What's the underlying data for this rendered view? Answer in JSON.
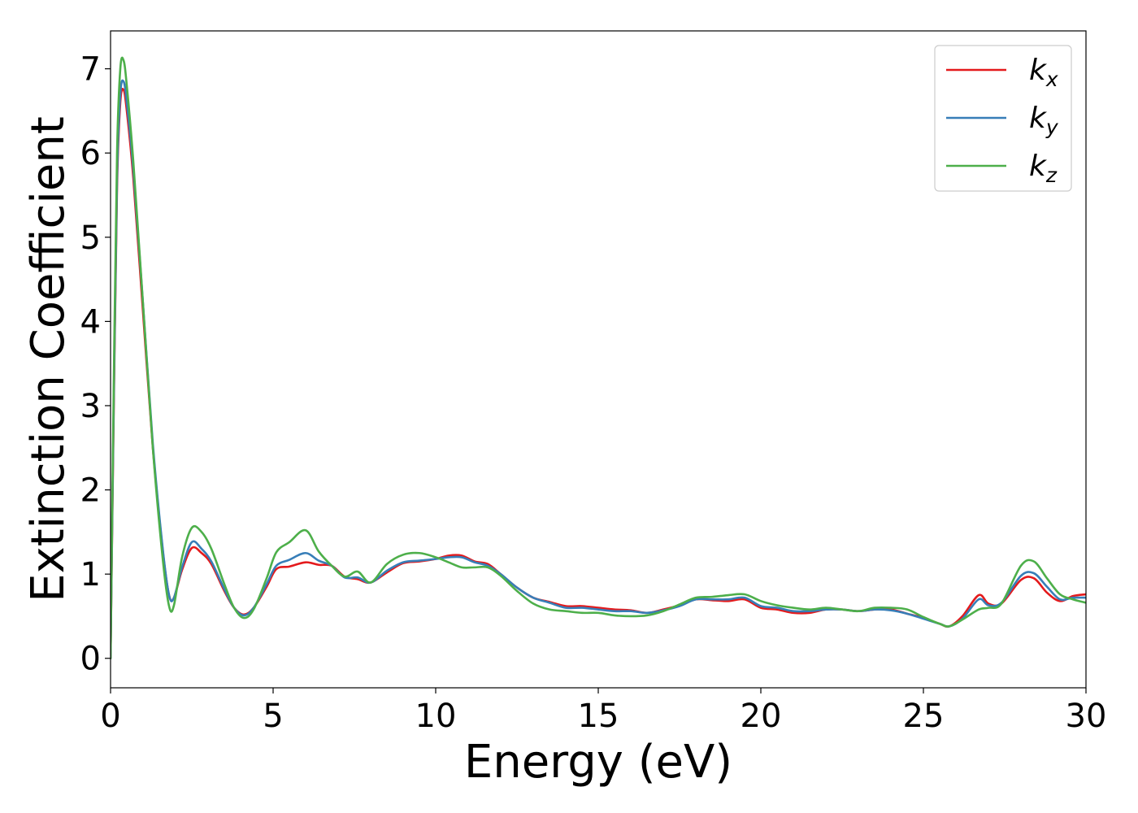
{
  "chart_data": {
    "type": "line",
    "title": "",
    "xlabel": "Energy (eV)",
    "ylabel": "Extinction Coefficient",
    "xlim": [
      0,
      30
    ],
    "ylim": [
      -0.35,
      7.45
    ],
    "xticks": [
      0,
      5,
      10,
      15,
      20,
      25,
      30
    ],
    "yticks": [
      0,
      1,
      2,
      3,
      4,
      5,
      6,
      7
    ],
    "grid": false,
    "legend_position": "top-right",
    "series": [
      {
        "name": "k",
        "subscript": "x",
        "color": "#e41a1c",
        "points": [
          [
            0,
            0
          ],
          [
            0.1,
            3.0
          ],
          [
            0.2,
            5.6
          ],
          [
            0.3,
            6.6
          ],
          [
            0.4,
            6.75
          ],
          [
            0.5,
            6.5
          ],
          [
            0.7,
            5.7
          ],
          [
            1.0,
            4.1
          ],
          [
            1.3,
            2.5
          ],
          [
            1.6,
            1.3
          ],
          [
            1.8,
            0.75
          ],
          [
            1.95,
            0.72
          ],
          [
            2.2,
            1.05
          ],
          [
            2.5,
            1.31
          ],
          [
            2.8,
            1.25
          ],
          [
            3.1,
            1.12
          ],
          [
            3.5,
            0.8
          ],
          [
            3.8,
            0.6
          ],
          [
            4.1,
            0.52
          ],
          [
            4.4,
            0.6
          ],
          [
            4.8,
            0.85
          ],
          [
            5.1,
            1.06
          ],
          [
            5.5,
            1.09
          ],
          [
            6.0,
            1.14
          ],
          [
            6.4,
            1.11
          ],
          [
            6.8,
            1.1
          ],
          [
            7.2,
            0.97
          ],
          [
            7.6,
            0.94
          ],
          [
            8.0,
            0.9
          ],
          [
            8.5,
            1.02
          ],
          [
            9.0,
            1.13
          ],
          [
            9.5,
            1.15
          ],
          [
            10.0,
            1.18
          ],
          [
            10.4,
            1.22
          ],
          [
            10.8,
            1.22
          ],
          [
            11.2,
            1.15
          ],
          [
            11.6,
            1.12
          ],
          [
            12.0,
            1.0
          ],
          [
            12.5,
            0.84
          ],
          [
            13.0,
            0.72
          ],
          [
            13.5,
            0.67
          ],
          [
            14.0,
            0.62
          ],
          [
            14.5,
            0.62
          ],
          [
            15.0,
            0.6
          ],
          [
            15.5,
            0.58
          ],
          [
            16.0,
            0.57
          ],
          [
            16.5,
            0.54
          ],
          [
            17.0,
            0.58
          ],
          [
            17.5,
            0.63
          ],
          [
            18.0,
            0.7
          ],
          [
            18.5,
            0.69
          ],
          [
            19.0,
            0.68
          ],
          [
            19.5,
            0.7
          ],
          [
            20.0,
            0.6
          ],
          [
            20.5,
            0.58
          ],
          [
            21.0,
            0.54
          ],
          [
            21.5,
            0.54
          ],
          [
            22.0,
            0.58
          ],
          [
            22.5,
            0.58
          ],
          [
            23.0,
            0.56
          ],
          [
            23.5,
            0.58
          ],
          [
            24.0,
            0.58
          ],
          [
            24.5,
            0.53
          ],
          [
            25.0,
            0.48
          ],
          [
            25.5,
            0.41
          ],
          [
            25.8,
            0.38
          ],
          [
            26.2,
            0.5
          ],
          [
            26.7,
            0.75
          ],
          [
            27.0,
            0.65
          ],
          [
            27.4,
            0.65
          ],
          [
            28.0,
            0.93
          ],
          [
            28.4,
            0.95
          ],
          [
            28.8,
            0.78
          ],
          [
            29.2,
            0.68
          ],
          [
            29.6,
            0.74
          ],
          [
            30.0,
            0.76
          ]
        ]
      },
      {
        "name": "k",
        "subscript": "y",
        "color": "#377eb8",
        "points": [
          [
            0,
            0
          ],
          [
            0.1,
            3.1
          ],
          [
            0.2,
            5.7
          ],
          [
            0.3,
            6.7
          ],
          [
            0.4,
            6.85
          ],
          [
            0.5,
            6.6
          ],
          [
            0.7,
            5.8
          ],
          [
            1.0,
            4.2
          ],
          [
            1.3,
            2.55
          ],
          [
            1.6,
            1.32
          ],
          [
            1.8,
            0.75
          ],
          [
            1.95,
            0.72
          ],
          [
            2.2,
            1.08
          ],
          [
            2.5,
            1.38
          ],
          [
            2.8,
            1.3
          ],
          [
            3.1,
            1.15
          ],
          [
            3.5,
            0.82
          ],
          [
            3.8,
            0.6
          ],
          [
            4.1,
            0.51
          ],
          [
            4.4,
            0.6
          ],
          [
            4.8,
            0.88
          ],
          [
            5.1,
            1.1
          ],
          [
            5.5,
            1.17
          ],
          [
            6.0,
            1.25
          ],
          [
            6.4,
            1.16
          ],
          [
            6.8,
            1.1
          ],
          [
            7.2,
            0.96
          ],
          [
            7.6,
            0.96
          ],
          [
            8.0,
            0.9
          ],
          [
            8.5,
            1.04
          ],
          [
            9.0,
            1.14
          ],
          [
            9.5,
            1.16
          ],
          [
            10.0,
            1.18
          ],
          [
            10.4,
            1.2
          ],
          [
            10.8,
            1.2
          ],
          [
            11.2,
            1.14
          ],
          [
            11.6,
            1.1
          ],
          [
            12.0,
            1.0
          ],
          [
            12.5,
            0.84
          ],
          [
            13.0,
            0.72
          ],
          [
            13.5,
            0.66
          ],
          [
            14.0,
            0.6
          ],
          [
            14.5,
            0.6
          ],
          [
            15.0,
            0.58
          ],
          [
            15.5,
            0.56
          ],
          [
            16.0,
            0.56
          ],
          [
            16.5,
            0.54
          ],
          [
            17.0,
            0.57
          ],
          [
            17.5,
            0.62
          ],
          [
            18.0,
            0.7
          ],
          [
            18.5,
            0.7
          ],
          [
            19.0,
            0.7
          ],
          [
            19.5,
            0.72
          ],
          [
            20.0,
            0.62
          ],
          [
            20.5,
            0.6
          ],
          [
            21.0,
            0.56
          ],
          [
            21.5,
            0.56
          ],
          [
            22.0,
            0.58
          ],
          [
            22.5,
            0.58
          ],
          [
            23.0,
            0.56
          ],
          [
            23.5,
            0.58
          ],
          [
            24.0,
            0.57
          ],
          [
            24.5,
            0.53
          ],
          [
            25.0,
            0.47
          ],
          [
            25.5,
            0.41
          ],
          [
            25.8,
            0.38
          ],
          [
            26.2,
            0.47
          ],
          [
            26.7,
            0.7
          ],
          [
            27.0,
            0.63
          ],
          [
            27.4,
            0.66
          ],
          [
            28.0,
            0.98
          ],
          [
            28.4,
            1.01
          ],
          [
            28.8,
            0.85
          ],
          [
            29.2,
            0.7
          ],
          [
            29.6,
            0.72
          ],
          [
            30.0,
            0.72
          ]
        ]
      },
      {
        "name": "k",
        "subscript": "z",
        "color": "#4daf4a",
        "points": [
          [
            0,
            0
          ],
          [
            0.1,
            3.3
          ],
          [
            0.2,
            6.0
          ],
          [
            0.3,
            7.0
          ],
          [
            0.4,
            7.1
          ],
          [
            0.5,
            6.8
          ],
          [
            0.7,
            5.9
          ],
          [
            1.0,
            4.2
          ],
          [
            1.3,
            2.5
          ],
          [
            1.6,
            1.2
          ],
          [
            1.8,
            0.62
          ],
          [
            1.95,
            0.63
          ],
          [
            2.2,
            1.2
          ],
          [
            2.5,
            1.55
          ],
          [
            2.8,
            1.5
          ],
          [
            3.1,
            1.3
          ],
          [
            3.5,
            0.88
          ],
          [
            3.8,
            0.6
          ],
          [
            4.1,
            0.48
          ],
          [
            4.4,
            0.58
          ],
          [
            4.8,
            0.95
          ],
          [
            5.1,
            1.26
          ],
          [
            5.5,
            1.38
          ],
          [
            6.0,
            1.52
          ],
          [
            6.4,
            1.27
          ],
          [
            6.8,
            1.1
          ],
          [
            7.2,
            0.97
          ],
          [
            7.6,
            1.03
          ],
          [
            8.0,
            0.9
          ],
          [
            8.5,
            1.12
          ],
          [
            9.0,
            1.23
          ],
          [
            9.5,
            1.25
          ],
          [
            10.0,
            1.2
          ],
          [
            10.4,
            1.14
          ],
          [
            10.8,
            1.08
          ],
          [
            11.2,
            1.08
          ],
          [
            11.6,
            1.08
          ],
          [
            12.0,
            0.98
          ],
          [
            12.5,
            0.8
          ],
          [
            13.0,
            0.65
          ],
          [
            13.5,
            0.58
          ],
          [
            14.0,
            0.56
          ],
          [
            14.5,
            0.54
          ],
          [
            15.0,
            0.54
          ],
          [
            15.5,
            0.51
          ],
          [
            16.0,
            0.5
          ],
          [
            16.5,
            0.51
          ],
          [
            17.0,
            0.56
          ],
          [
            17.5,
            0.64
          ],
          [
            18.0,
            0.72
          ],
          [
            18.5,
            0.73
          ],
          [
            19.0,
            0.75
          ],
          [
            19.5,
            0.76
          ],
          [
            20.0,
            0.68
          ],
          [
            20.5,
            0.63
          ],
          [
            21.0,
            0.6
          ],
          [
            21.5,
            0.58
          ],
          [
            22.0,
            0.6
          ],
          [
            22.5,
            0.58
          ],
          [
            23.0,
            0.56
          ],
          [
            23.5,
            0.6
          ],
          [
            24.0,
            0.6
          ],
          [
            24.5,
            0.58
          ],
          [
            25.0,
            0.49
          ],
          [
            25.5,
            0.41
          ],
          [
            25.8,
            0.38
          ],
          [
            26.2,
            0.46
          ],
          [
            26.7,
            0.58
          ],
          [
            27.0,
            0.6
          ],
          [
            27.4,
            0.65
          ],
          [
            28.0,
            1.1
          ],
          [
            28.4,
            1.15
          ],
          [
            28.8,
            0.95
          ],
          [
            29.2,
            0.76
          ],
          [
            29.6,
            0.7
          ],
          [
            30.0,
            0.66
          ]
        ]
      }
    ]
  }
}
